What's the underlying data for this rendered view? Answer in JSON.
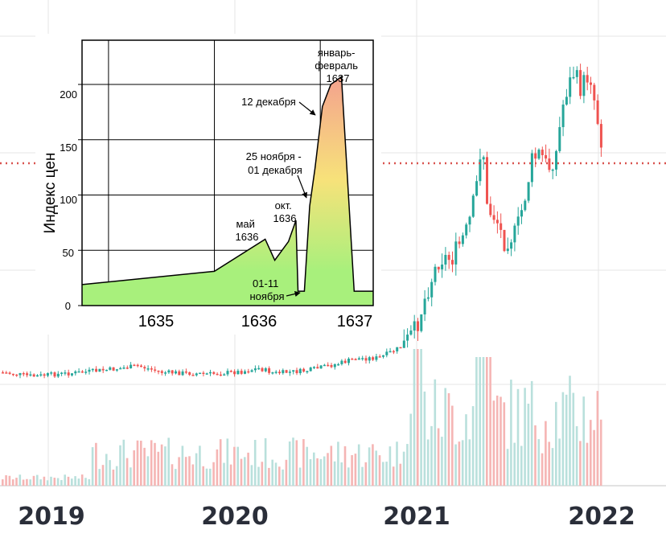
{
  "chart_data": [
    {
      "type": "candlestick",
      "x_labels": [
        "2019",
        "2020",
        "2021",
        "2022"
      ],
      "reference_line": {
        "style": "dotted",
        "color": "#d9534f"
      },
      "colors": {
        "up": "#26a69a",
        "down": "#ef5350",
        "grid": "#e6e6e6",
        "volume_up": "#b9e0dc",
        "volume_down": "#f5b5b4"
      },
      "grid": true
    },
    {
      "type": "area",
      "ylabel": "Индекс цен",
      "x_ticks": [
        "1635",
        "1636",
        "1637"
      ],
      "y_ticks": [
        "0",
        "50",
        "100",
        "150",
        "200"
      ],
      "ylim": [
        0,
        240
      ],
      "xlim": [
        1634.25,
        1637.0
      ],
      "grid": true,
      "colors": {
        "low": "#a8f07c",
        "high": "#f4a28e"
      },
      "points": [
        [
          1634.25,
          19
        ],
        [
          1635.5,
          31
        ],
        [
          1635.98,
          60
        ],
        [
          1636.07,
          41
        ],
        [
          1636.2,
          58
        ],
        [
          1636.27,
          77
        ],
        [
          1636.29,
          13
        ],
        [
          1636.35,
          13
        ],
        [
          1636.4,
          90
        ],
        [
          1636.45,
          124
        ],
        [
          1636.52,
          180
        ],
        [
          1636.6,
          200
        ],
        [
          1636.7,
          207
        ],
        [
          1636.82,
          13
        ],
        [
          1637.0,
          13
        ]
      ],
      "annotations": [
        {
          "lines": [
            "январь-",
            "февраль",
            "1637"
          ]
        },
        {
          "lines": [
            "12 декабря"
          ]
        },
        {
          "lines": [
            "25 ноября -",
            "01 декабря"
          ]
        },
        {
          "lines": [
            "окт.",
            "1636"
          ]
        },
        {
          "lines": [
            "май",
            "1636"
          ]
        },
        {
          "lines": [
            "01-11",
            "ноября"
          ]
        }
      ]
    }
  ]
}
